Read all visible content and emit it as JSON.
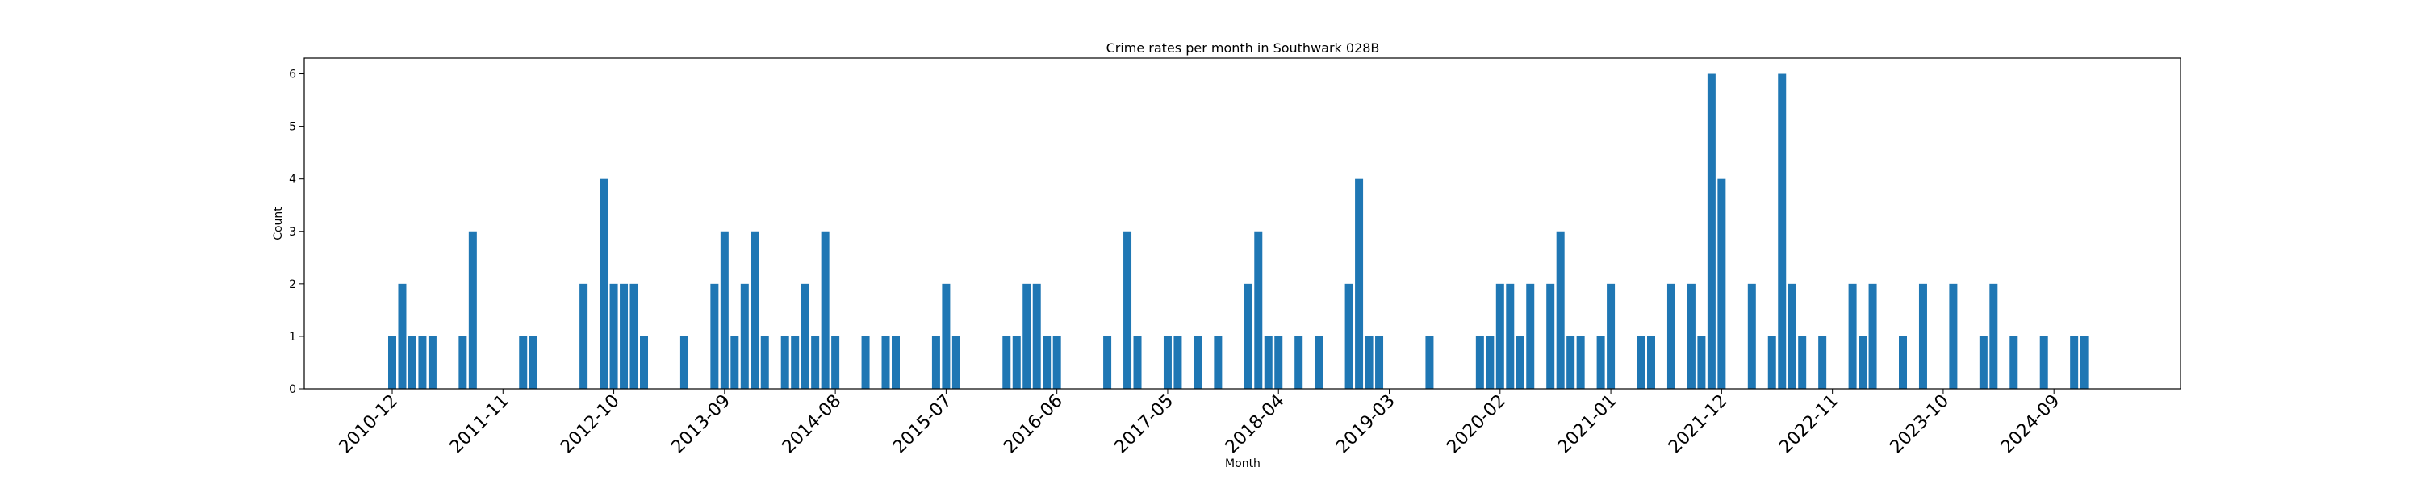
{
  "chart_data": {
    "type": "bar",
    "title": "Crime rates per month in Southwark 028B",
    "xlabel": "Month",
    "ylabel": "Count",
    "ylim": [
      0,
      6.3
    ],
    "yticks": [
      0,
      1,
      2,
      3,
      4,
      5,
      6
    ],
    "grid": false,
    "bar_color": "#1f77b4",
    "xtick_labels": [
      "2010-12",
      "2011-11",
      "2012-10",
      "2013-09",
      "2014-08",
      "2015-07",
      "2016-06",
      "2017-05",
      "2018-04",
      "2019-03",
      "2020-02",
      "2021-01",
      "2021-12",
      "2022-11",
      "2023-10",
      "2024-09"
    ],
    "data": [
      {
        "month": "2010-12",
        "value": 1
      },
      {
        "month": "2011-01",
        "value": 2
      },
      {
        "month": "2011-02",
        "value": 1
      },
      {
        "month": "2011-03",
        "value": 1
      },
      {
        "month": "2011-04",
        "value": 1
      },
      {
        "month": "2011-07",
        "value": 1
      },
      {
        "month": "2011-08",
        "value": 3
      },
      {
        "month": "2012-01",
        "value": 1
      },
      {
        "month": "2012-02",
        "value": 1
      },
      {
        "month": "2012-07",
        "value": 2
      },
      {
        "month": "2012-09",
        "value": 4
      },
      {
        "month": "2012-10",
        "value": 2
      },
      {
        "month": "2012-11",
        "value": 2
      },
      {
        "month": "2012-12",
        "value": 2
      },
      {
        "month": "2013-01",
        "value": 1
      },
      {
        "month": "2013-05",
        "value": 1
      },
      {
        "month": "2013-08",
        "value": 2
      },
      {
        "month": "2013-09",
        "value": 3
      },
      {
        "month": "2013-10",
        "value": 1
      },
      {
        "month": "2013-11",
        "value": 2
      },
      {
        "month": "2013-12",
        "value": 3
      },
      {
        "month": "2014-01",
        "value": 1
      },
      {
        "month": "2014-03",
        "value": 1
      },
      {
        "month": "2014-04",
        "value": 1
      },
      {
        "month": "2014-05",
        "value": 2
      },
      {
        "month": "2014-06",
        "value": 1
      },
      {
        "month": "2014-07",
        "value": 3
      },
      {
        "month": "2014-08",
        "value": 1
      },
      {
        "month": "2014-11",
        "value": 1
      },
      {
        "month": "2015-01",
        "value": 1
      },
      {
        "month": "2015-02",
        "value": 1
      },
      {
        "month": "2015-06",
        "value": 1
      },
      {
        "month": "2015-07",
        "value": 2
      },
      {
        "month": "2015-08",
        "value": 1
      },
      {
        "month": "2016-01",
        "value": 1
      },
      {
        "month": "2016-02",
        "value": 1
      },
      {
        "month": "2016-03",
        "value": 2
      },
      {
        "month": "2016-04",
        "value": 2
      },
      {
        "month": "2016-05",
        "value": 1
      },
      {
        "month": "2016-06",
        "value": 1
      },
      {
        "month": "2016-11",
        "value": 1
      },
      {
        "month": "2017-01",
        "value": 3
      },
      {
        "month": "2017-02",
        "value": 1
      },
      {
        "month": "2017-05",
        "value": 1
      },
      {
        "month": "2017-06",
        "value": 1
      },
      {
        "month": "2017-08",
        "value": 1
      },
      {
        "month": "2017-10",
        "value": 1
      },
      {
        "month": "2018-01",
        "value": 2
      },
      {
        "month": "2018-02",
        "value": 3
      },
      {
        "month": "2018-03",
        "value": 1
      },
      {
        "month": "2018-04",
        "value": 1
      },
      {
        "month": "2018-06",
        "value": 1
      },
      {
        "month": "2018-08",
        "value": 1
      },
      {
        "month": "2018-11",
        "value": 2
      },
      {
        "month": "2018-12",
        "value": 4
      },
      {
        "month": "2019-01",
        "value": 1
      },
      {
        "month": "2019-02",
        "value": 1
      },
      {
        "month": "2019-07",
        "value": 1
      },
      {
        "month": "2019-12",
        "value": 1
      },
      {
        "month": "2020-01",
        "value": 1
      },
      {
        "month": "2020-02",
        "value": 2
      },
      {
        "month": "2020-03",
        "value": 2
      },
      {
        "month": "2020-04",
        "value": 1
      },
      {
        "month": "2020-05",
        "value": 2
      },
      {
        "month": "2020-07",
        "value": 2
      },
      {
        "month": "2020-08",
        "value": 3
      },
      {
        "month": "2020-09",
        "value": 1
      },
      {
        "month": "2020-10",
        "value": 1
      },
      {
        "month": "2020-12",
        "value": 1
      },
      {
        "month": "2021-01",
        "value": 2
      },
      {
        "month": "2021-04",
        "value": 1
      },
      {
        "month": "2021-05",
        "value": 1
      },
      {
        "month": "2021-07",
        "value": 2
      },
      {
        "month": "2021-09",
        "value": 2
      },
      {
        "month": "2021-10",
        "value": 1
      },
      {
        "month": "2021-11",
        "value": 6
      },
      {
        "month": "2021-12",
        "value": 4
      },
      {
        "month": "2022-03",
        "value": 2
      },
      {
        "month": "2022-05",
        "value": 1
      },
      {
        "month": "2022-06",
        "value": 6
      },
      {
        "month": "2022-07",
        "value": 2
      },
      {
        "month": "2022-08",
        "value": 1
      },
      {
        "month": "2022-10",
        "value": 1
      },
      {
        "month": "2023-01",
        "value": 2
      },
      {
        "month": "2023-02",
        "value": 1
      },
      {
        "month": "2023-03",
        "value": 2
      },
      {
        "month": "2023-06",
        "value": 1
      },
      {
        "month": "2023-08",
        "value": 2
      },
      {
        "month": "2023-11",
        "value": 2
      },
      {
        "month": "2024-02",
        "value": 1
      },
      {
        "month": "2024-03",
        "value": 2
      },
      {
        "month": "2024-05",
        "value": 1
      },
      {
        "month": "2024-08",
        "value": 1
      },
      {
        "month": "2024-11",
        "value": 1
      },
      {
        "month": "2024-12",
        "value": 1
      }
    ]
  }
}
